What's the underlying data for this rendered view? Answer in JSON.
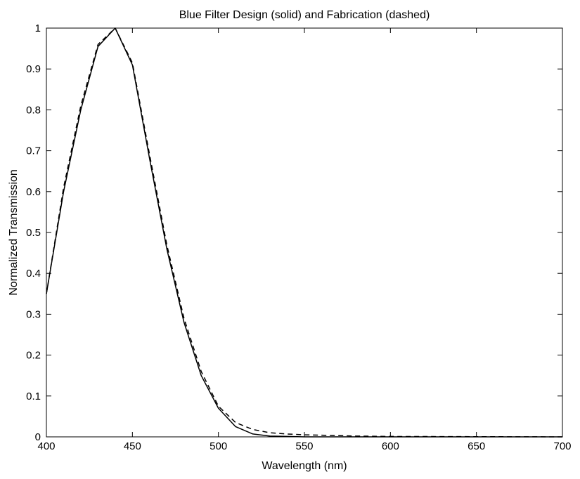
{
  "chart_data": {
    "type": "line",
    "title": "Blue Filter Design (solid) and Fabrication (dashed)",
    "xlabel": "Wavelength (nm)",
    "ylabel": "Normalized Transmission",
    "xlim": [
      400,
      700
    ],
    "ylim": [
      0,
      1
    ],
    "xticks": [
      400,
      450,
      500,
      550,
      600,
      650,
      700
    ],
    "yticks": [
      0,
      0.1,
      0.2,
      0.3,
      0.4,
      0.5,
      0.6,
      0.7,
      0.8,
      0.9,
      1
    ],
    "xtick_labels": [
      "400",
      "450",
      "500",
      "550",
      "600",
      "650",
      "700"
    ],
    "ytick_labels": [
      "0",
      "0.1",
      "0.2",
      "0.3",
      "0.4",
      "0.5",
      "0.6",
      "0.7",
      "0.8",
      "0.9",
      "1"
    ],
    "grid": false,
    "series": [
      {
        "style": "solid",
        "color": "#000000",
        "x": [
          400,
          410,
          420,
          430,
          440,
          450,
          460,
          470,
          480,
          490,
          500,
          510,
          520,
          530,
          540,
          550,
          600,
          650,
          700
        ],
        "y": [
          0.35,
          0.6,
          0.8,
          0.955,
          1.0,
          0.91,
          0.68,
          0.46,
          0.28,
          0.15,
          0.07,
          0.025,
          0.007,
          0.002,
          0.001,
          0.0,
          0.0,
          0.0,
          0.0
        ]
      },
      {
        "style": "dashed",
        "color": "#000000",
        "x": [
          400,
          410,
          420,
          430,
          440,
          450,
          460,
          470,
          480,
          490,
          500,
          510,
          520,
          530,
          540,
          550,
          560,
          570,
          580,
          600,
          650,
          700
        ],
        "y": [
          0.35,
          0.61,
          0.81,
          0.96,
          1.0,
          0.915,
          0.69,
          0.47,
          0.29,
          0.16,
          0.075,
          0.035,
          0.018,
          0.01,
          0.007,
          0.005,
          0.004,
          0.003,
          0.002,
          0.001,
          0.0005,
          0.0
        ]
      }
    ]
  }
}
